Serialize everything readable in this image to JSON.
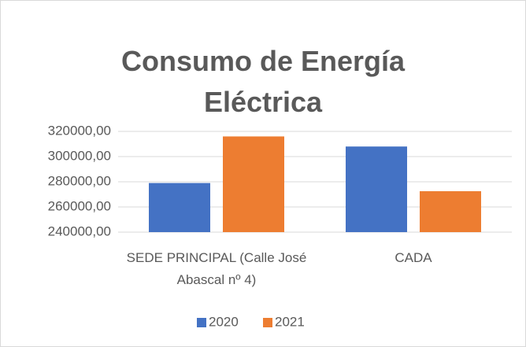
{
  "chart_data": {
    "type": "bar",
    "title": "Consumo de Energía Eléctrica",
    "categories": [
      "SEDE PRINCIPAL (Calle José Abascal nº 4)",
      "CADA"
    ],
    "series": [
      {
        "name": "2020",
        "color": "#4472c4",
        "values": [
          279000,
          308000
        ]
      },
      {
        "name": "2021",
        "color": "#ed7d31",
        "values": [
          316000,
          272500
        ]
      }
    ],
    "ylim": [
      240000,
      320000
    ],
    "yticks": [
      {
        "value": 240000,
        "label": "240000,00"
      },
      {
        "value": 260000,
        "label": "260000,00"
      },
      {
        "value": 280000,
        "label": "280000,00"
      },
      {
        "value": 300000,
        "label": "300000,00"
      },
      {
        "value": 320000,
        "label": "320000,00"
      }
    ],
    "grid": true,
    "legend": "bottom"
  }
}
